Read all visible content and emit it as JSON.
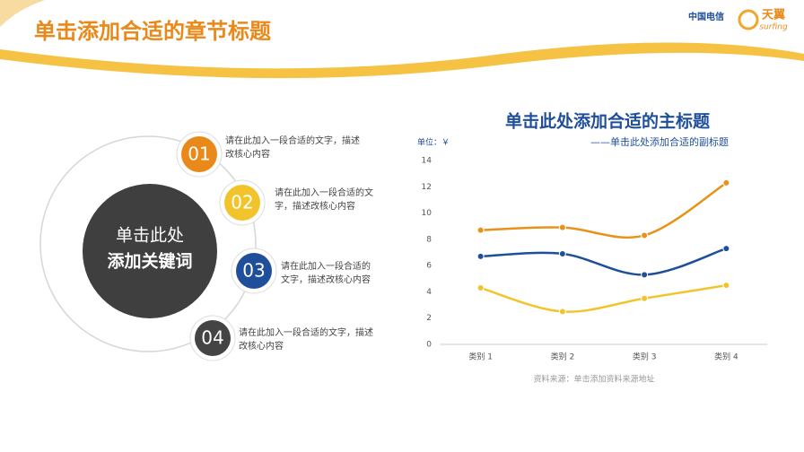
{
  "header": {
    "title": "单击添加合适的章节标题",
    "logo_brand": "中国电信",
    "logo_product": "天翼",
    "logo_product_en": "surfing"
  },
  "diagram": {
    "center": [
      "单击此处",
      "添加关键词"
    ],
    "items": [
      {
        "number": "01",
        "text": "请在此加入一段合适的文字，描述改核心内容"
      },
      {
        "number": "02",
        "text": "请在此加入一段合适的文字，描述改核心内容"
      },
      {
        "number": "03",
        "text": "请在此加入一段合适的文字，描述改核心内容"
      },
      {
        "number": "04",
        "text": "请在此加入一段合适的文字，描述改核心内容"
      }
    ]
  },
  "chart_data": {
    "type": "line",
    "title": "单击此处添加合适的主标题",
    "subtitle": "——单击此处添加合适的副标题",
    "unit_label": "单位：￥",
    "source": "资料来源：单击添加资料来源地址",
    "categories": [
      "类别 1",
      "类别 2",
      "类别 3",
      "类别 4"
    ],
    "series": [
      {
        "color": "#e8921a",
        "values": [
          8.7,
          8.9,
          8.3,
          12.3
        ]
      },
      {
        "color": "#1f4e9a",
        "values": [
          6.7,
          6.9,
          5.3,
          7.3
        ]
      },
      {
        "color": "#f2c42c",
        "values": [
          4.3,
          2.5,
          3.5,
          4.5
        ]
      }
    ],
    "ylim": [
      0,
      14
    ],
    "yticks": [
      0,
      2,
      4,
      6,
      8,
      10,
      12,
      14
    ],
    "grid": false
  }
}
